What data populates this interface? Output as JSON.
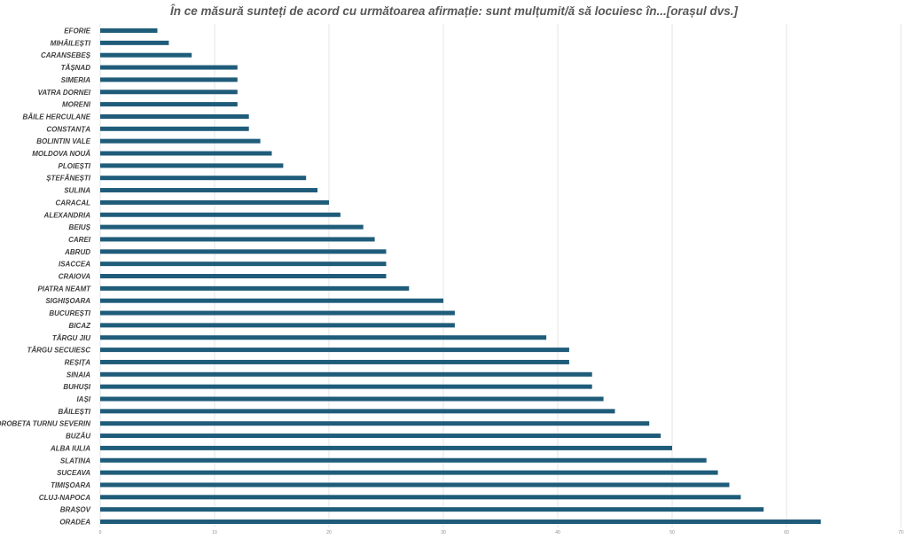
{
  "chart_data": {
    "type": "bar",
    "orientation": "horizontal",
    "title": "În ce măsură sunteți de acord cu următoarea afirmație: sunt mulțumit/ă să locuiesc în...[orașul dvs.]",
    "categories": [
      "EFORIE",
      "MIHĂILEȘTI",
      "CARANSEBEȘ",
      "TĂȘNAD",
      "SIMERIA",
      "VATRA DORNEI",
      "MORENI",
      "BĂILE HERCULANE",
      "CONSTANȚA",
      "BOLINTIN VALE",
      "MOLDOVA NOUĂ",
      "PLOIEȘTI",
      "ȘTEFĂNEȘTI",
      "SULINA",
      "CARACAL",
      "ALEXANDRIA",
      "BEIUȘ",
      "CAREI",
      "ABRUD",
      "ISACCEA",
      "CRAIOVA",
      "PIATRA NEAMT",
      "SIGHIȘOARA",
      "BUCUREȘTI",
      "BICAZ",
      "TÂRGU JIU",
      "TÂRGU SECUIESC",
      "REȘIȚA",
      "SINAIA",
      "BUHUȘI",
      "IAȘI",
      "BĂILEȘTI",
      "DROBETA TURNU SEVERIN",
      "BUZĂU",
      "ALBA IULIA",
      "SLATINA",
      "SUCEAVA",
      "TIMIȘOARA",
      "CLUJ-NAPOCA",
      "BRAȘOV",
      "ORADEA"
    ],
    "values": [
      5,
      6,
      8,
      12,
      12,
      12,
      12,
      13,
      13,
      14,
      15,
      16,
      18,
      19,
      20,
      21,
      23,
      24,
      25,
      25,
      25,
      27,
      30,
      31,
      31,
      39,
      41,
      41,
      43,
      43,
      44,
      45,
      48,
      49,
      50,
      53,
      54,
      55,
      56,
      58,
      63
    ],
    "xlim": [
      0,
      70
    ],
    "xticks": [
      "0",
      "10",
      "20",
      "30",
      "40",
      "50",
      "60",
      "70"
    ],
    "grid": true,
    "bar_color": "#1f5c7a",
    "grid_color": "#e6e6e6"
  }
}
